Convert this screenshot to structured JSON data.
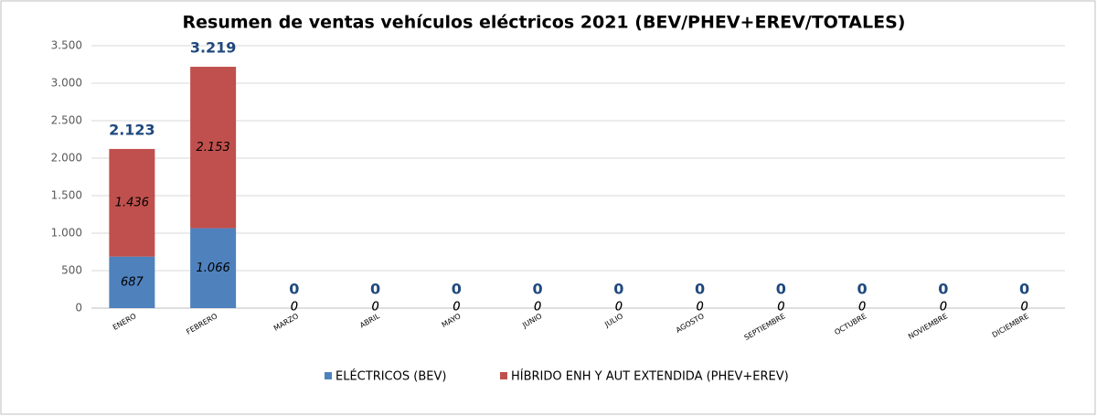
{
  "chart_data": {
    "type": "stacked_bar",
    "title": "Resumen de ventas vehículos eléctricos 2021 (BEV/PHEV+EREV/TOTALES)",
    "categories": [
      "ENERO",
      "FEBRERO",
      "MARZO",
      "ABRIL",
      "MAYO",
      "JUNIO",
      "JULIO",
      "AGOSTO",
      "SEPTIEMBRE",
      "OCTUBRE",
      "NOVIEMBRE",
      "DICIEMBRE"
    ],
    "series": [
      {
        "name": "ELÉCTRICOS (BEV)",
        "color": "#4f81bd",
        "values": [
          687,
          1066,
          0,
          0,
          0,
          0,
          0,
          0,
          0,
          0,
          0,
          0
        ],
        "value_labels": [
          "687",
          "1.066",
          "0",
          "0",
          "0",
          "0",
          "0",
          "0",
          "0",
          "0",
          "0",
          "0"
        ]
      },
      {
        "name": "HÍBRIDO ENH Y AUT EXTENDIDA (PHEV+EREV)",
        "color": "#c0504d",
        "values": [
          1436,
          2153,
          0,
          0,
          0,
          0,
          0,
          0,
          0,
          0,
          0,
          0
        ],
        "value_labels": [
          "1.436",
          "2.153",
          "0",
          "0",
          "0",
          "0",
          "0",
          "0",
          "0",
          "0",
          "0",
          "0"
        ]
      }
    ],
    "totals": {
      "color": "#1f497d",
      "values": [
        2123,
        3219,
        0,
        0,
        0,
        0,
        0,
        0,
        0,
        0,
        0,
        0
      ],
      "value_labels": [
        "2.123",
        "3.219",
        "0",
        "0",
        "0",
        "0",
        "0",
        "0",
        "0",
        "0",
        "0",
        "0"
      ]
    },
    "ylim": [
      0,
      3500
    ],
    "yticks": [
      0,
      500,
      {
        "value": 1000,
        "label": "1.000"
      },
      {
        "value": 1500,
        "label": "1.500"
      },
      {
        "value": 2000,
        "label": "2.000"
      },
      {
        "value": 2500,
        "label": "2.500"
      },
      {
        "value": 3000,
        "label": "3.000"
      },
      {
        "value": 3500,
        "label": "3.500"
      }
    ],
    "grid": true,
    "legend": "bottom"
  }
}
